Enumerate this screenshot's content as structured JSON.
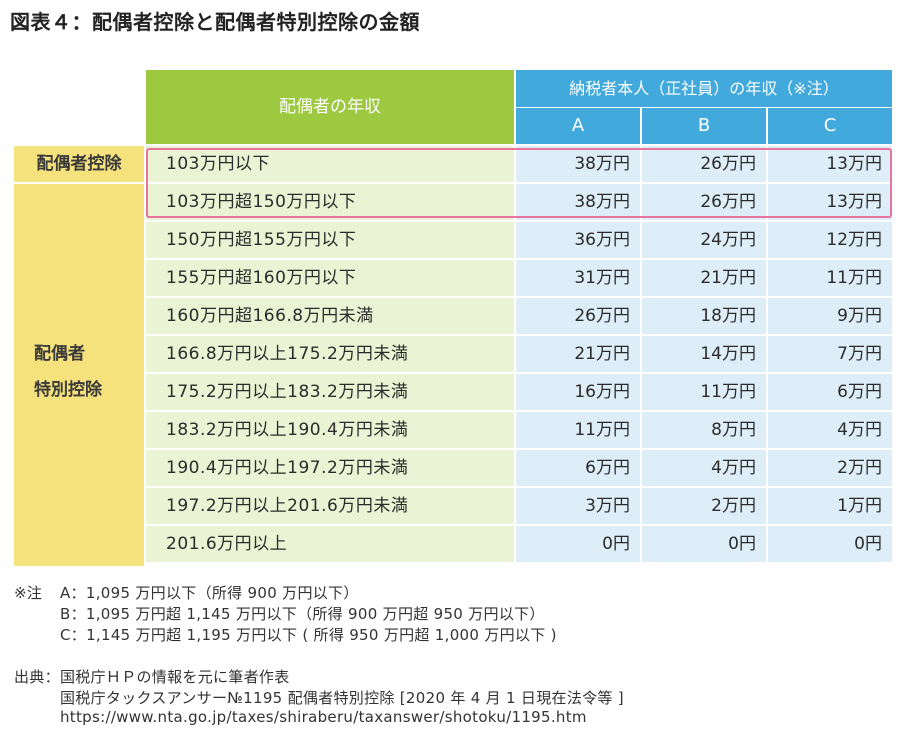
{
  "title": "図表４：配偶者控除と配偶者特別控除の金額",
  "table": {
    "header_left": "配偶者の年収",
    "header_right": "納税者本人（正社員）の年収（※注）",
    "columns": [
      "A",
      "B",
      "C"
    ],
    "group_labels": {
      "spousal": "配偶者控除",
      "special_line1": "配偶者",
      "special_line2": "特別控除"
    },
    "rows": [
      {
        "income": "103万円以下",
        "a": "38万円",
        "b": "26万円",
        "c": "13万円"
      },
      {
        "income": "103万円超150万円以下",
        "a": "38万円",
        "b": "26万円",
        "c": "13万円"
      },
      {
        "income": "150万円超155万円以下",
        "a": "36万円",
        "b": "24万円",
        "c": "12万円"
      },
      {
        "income": "155万円超160万円以下",
        "a": "31万円",
        "b": "21万円",
        "c": "11万円"
      },
      {
        "income": "160万円超166.8万円未満",
        "a": "26万円",
        "b": "18万円",
        "c": "9万円"
      },
      {
        "income": "166.8万円以上175.2万円未満",
        "a": "21万円",
        "b": "14万円",
        "c": "7万円"
      },
      {
        "income": "175.2万円以上183.2万円未満",
        "a": "16万円",
        "b": "11万円",
        "c": "6万円"
      },
      {
        "income": "183.2万円以上190.4万円未満",
        "a": "11万円",
        "b": "8万円",
        "c": "4万円"
      },
      {
        "income": "190.4万円以上197.2万円未満",
        "a": "6万円",
        "b": "4万円",
        "c": "2万円"
      },
      {
        "income": "197.2万円以上201.6万円未満",
        "a": "3万円",
        "b": "2万円",
        "c": "1万円"
      },
      {
        "income": "201.6万円以上",
        "a": "0円",
        "b": "0円",
        "c": "0円"
      }
    ]
  },
  "notes": {
    "note_label": "※注",
    "note_a": "A：1,095 万円以下（所得 900 万円以下）",
    "note_b": "B：1,095 万円超 1,145 万円以下（所得 900 万円超 950 万円以下）",
    "note_c": "C：1,145 万円超 1,195 万円以下 ( 所得 950 万円超 1,000 万円以下 )",
    "source_label": "出典：",
    "source_1": "国税庁ＨＰの情報を元に筆者作表",
    "source_2": "国税庁タックスアンサー№1195 配偶者特別控除 [2020 年 4 月 1 日現在法令等 ]",
    "source_3": "https://www.nta.go.jp/taxes/shiraberu/taxanswer/shotoku/1195.htm"
  },
  "colors": {
    "header_green": "#9cc93f",
    "header_blue": "#41a9dc",
    "side_yellow": "#f5e27d",
    "row_green": "#eaf3d3",
    "row_blue": "#deeef8",
    "highlight_pink": "#e8739d"
  }
}
